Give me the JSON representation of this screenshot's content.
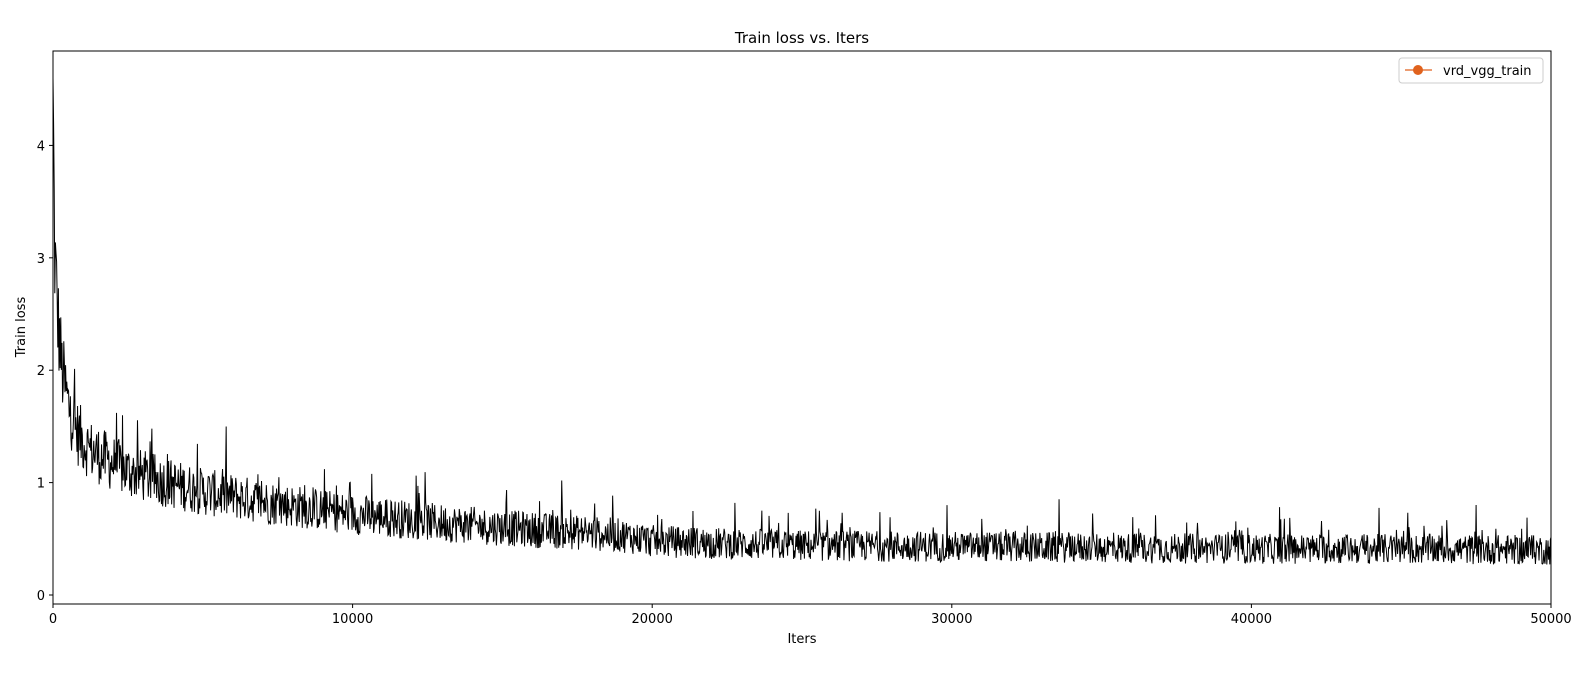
{
  "chart_data": {
    "type": "line",
    "title": "Train loss  vs. Iters",
    "xlabel": "Iters",
    "ylabel": "Train loss",
    "xlim": [
      0,
      50000
    ],
    "ylim": [
      -0.08,
      4.84
    ],
    "xticks": [
      0,
      10000,
      20000,
      30000,
      40000,
      50000
    ],
    "yticks": [
      0,
      1,
      2,
      3,
      4
    ],
    "grid": false,
    "legend_position": "top-right",
    "series": [
      {
        "name": "vrd_vgg_train",
        "color": "#000000",
        "legend_color": "#e0621d",
        "marker": "o",
        "trend_points": {
          "x": [
            0,
            50,
            150,
            300,
            500,
            800,
            1200,
            1800,
            2500,
            3500,
            5000,
            7000,
            10000,
            13000,
            16000,
            19000,
            20000,
            22000,
            25000,
            30000,
            35000,
            40000,
            45000,
            50000
          ],
          "y": [
            4.6,
            3.1,
            2.5,
            2.0,
            1.7,
            1.45,
            1.3,
            1.2,
            1.1,
            1.02,
            0.92,
            0.83,
            0.72,
            0.64,
            0.58,
            0.53,
            0.48,
            0.46,
            0.44,
            0.43,
            0.42,
            0.41,
            0.41,
            0.4
          ]
        },
        "noise_amplitude": 0.14,
        "samples_shown": 2500
      }
    ]
  }
}
